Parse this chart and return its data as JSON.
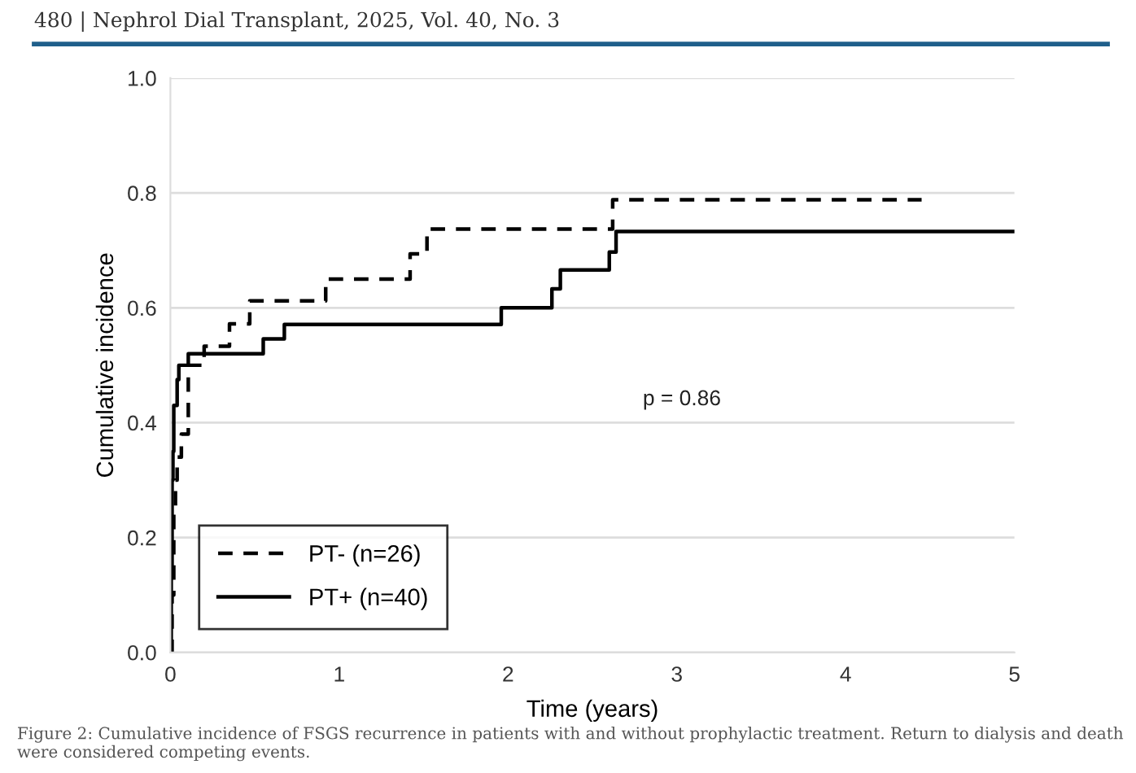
{
  "chart_data": {
    "type": "step",
    "xlabel": "Time (years)",
    "ylabel": "Cumulative incidence",
    "series": [
      {
        "name": "PT- (n=26)",
        "color": "#000000",
        "line_style": "dashed",
        "x": [
          0,
          0.01,
          0.02,
          0.03,
          0.04,
          0.065,
          0.106,
          0.2,
          0.35,
          0.47,
          0.92,
          1.42,
          1.52,
          2.62,
          4.45
        ],
        "values": [
          0,
          0.1,
          0.25,
          0.3,
          0.34,
          0.38,
          0.5,
          0.533,
          0.572,
          0.612,
          0.65,
          0.694,
          0.737,
          0.788,
          0.788
        ]
      },
      {
        "name": "PT+ (n=40)",
        "color": "#000000",
        "line_style": "solid",
        "x": [
          0,
          0.005,
          0.01,
          0.015,
          0.02,
          0.04,
          0.05,
          0.106,
          0.55,
          0.675,
          1.96,
          2.26,
          2.31,
          2.6,
          2.64,
          5
        ],
        "values": [
          0,
          0.15,
          0.3,
          0.35,
          0.43,
          0.475,
          0.5,
          0.52,
          0.546,
          0.571,
          0.6,
          0.633,
          0.666,
          0.697,
          0.733,
          0.733
        ]
      }
    ],
    "xlim": [
      0,
      5
    ],
    "xticks": [
      0,
      1,
      2,
      3,
      4,
      5
    ],
    "ylim": [
      0,
      1
    ],
    "yticks": [
      {
        "value": 0,
        "label": "0.0"
      },
      {
        "value": 0.2,
        "label": "0.2"
      },
      {
        "value": 0.4,
        "label": "0.4"
      },
      {
        "value": 0.6,
        "label": "0.6"
      },
      {
        "value": 0.8,
        "label": "0.8"
      },
      {
        "value": 1,
        "label": "1.0"
      }
    ],
    "grid": "y",
    "legend": "bottom left",
    "marker": "none",
    "annotations": [
      "p = 0.86",
      "480 | Nephrol Dial Transplant, 2025, Vol. 40, No. 3",
      "Figure 2: Cumulative incidence of FSGS recurrence in patients with and without prophylactic treatment. Return to dialysis and death were considered competing events."
    ]
  }
}
